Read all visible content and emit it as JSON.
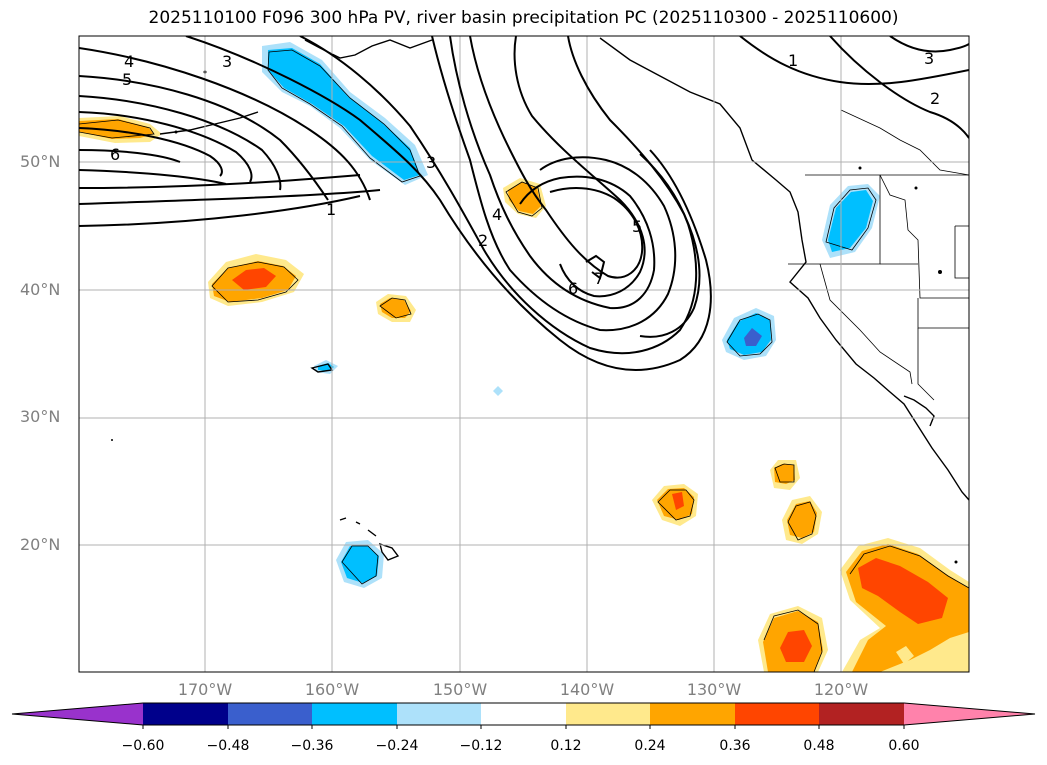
{
  "title": "2025110100 F096 300 hPa PV, river basin precipitation PC (2025110300 - 2025110600)",
  "lat_labels": [
    "50°N",
    "40°N",
    "30°N",
    "20°N"
  ],
  "lon_labels": [
    "170°W",
    "160°W",
    "150°W",
    "140°W",
    "130°W",
    "120°W"
  ],
  "colorbar": {
    "ticks": [
      "−0.60",
      "−0.48",
      "−0.36",
      "−0.24",
      "−0.12",
      "0.12",
      "0.24",
      "0.36",
      "0.48",
      "0.60"
    ],
    "colors": [
      "#9932CC",
      "#00008B",
      "#3A5FCD",
      "#00BFFF",
      "#ADE1FA",
      "#FFFFFF",
      "#FFE98C",
      "#FFA500",
      "#FF4500",
      "#B22222",
      "#FF82AB"
    ]
  },
  "contour_labels": [
    "4",
    "5",
    "6",
    "3",
    "1",
    "3",
    "4",
    "2",
    "5",
    "6",
    "7",
    "1",
    "3",
    "2"
  ]
}
